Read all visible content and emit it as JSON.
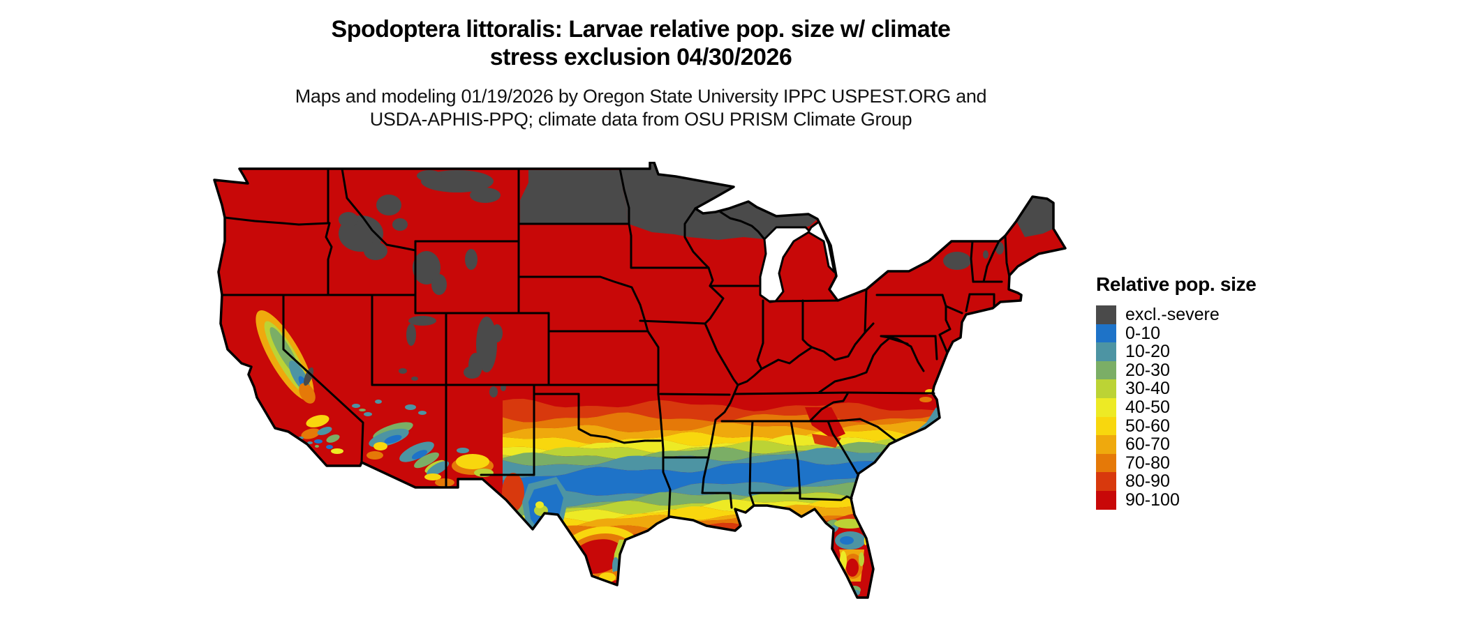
{
  "header": {
    "title_lines": [
      "Spodoptera littoralis: Larvae relative pop. size w/ climate",
      "stress exclusion 04/30/2026"
    ],
    "subtitle_lines": [
      "Maps and modeling 01/19/2026 by Oregon State University IPPC USPEST.ORG and",
      "USDA-APHIS-PPQ; climate data from OSU PRISM Climate Group"
    ]
  },
  "legend": {
    "title": "Relative pop. size",
    "items": [
      {
        "label": "excl.-severe",
        "class": "excl",
        "color": "#4A4A4A"
      },
      {
        "label": "0-10",
        "class": "0-10",
        "color": "#1E73C8"
      },
      {
        "label": "10-20",
        "class": "10-20",
        "color": "#4D94A3"
      },
      {
        "label": "20-30",
        "class": "20-30",
        "color": "#7BAE66"
      },
      {
        "label": "30-40",
        "class": "30-40",
        "color": "#BCD335"
      },
      {
        "label": "40-50",
        "class": "40-50",
        "color": "#EDEA25"
      },
      {
        "label": "50-60",
        "class": "50-60",
        "color": "#F8D70E"
      },
      {
        "label": "60-70",
        "class": "60-70",
        "color": "#EFA90D"
      },
      {
        "label": "70-80",
        "class": "70-80",
        "color": "#E57908"
      },
      {
        "label": "80-90",
        "class": "80-90",
        "color": "#D8390D"
      },
      {
        "label": "90-100",
        "class": "90-100",
        "color": "#C80808"
      }
    ]
  },
  "map": {
    "region": "Contiguous United States",
    "type": "choropleth raster of relative population size classes with state borders",
    "zones": [
      "Most of the northern, central and eastern U.S. is class 90-100 (red)",
      "excl.-severe (gray): most of North Dakota, Minnesota, northern Wisconsin, upper Michigan, northern Maine, Adirondacks, and Rocky Mountain highlands of Idaho, Montana, Wyoming, Utah and Colorado",
      "Southern band gradient 80-90 down to 0-10 (blue) and back to 80-90 across Texas, the Gulf states and the Carolinas",
      "Low-to-mid class mosaic in California Central Valley, southern California, southern Nevada, Arizona and New Mexico",
      "Florida mixes 10-20 through 90-100; south Texas returns to 50-60 through 90-100"
    ]
  }
}
